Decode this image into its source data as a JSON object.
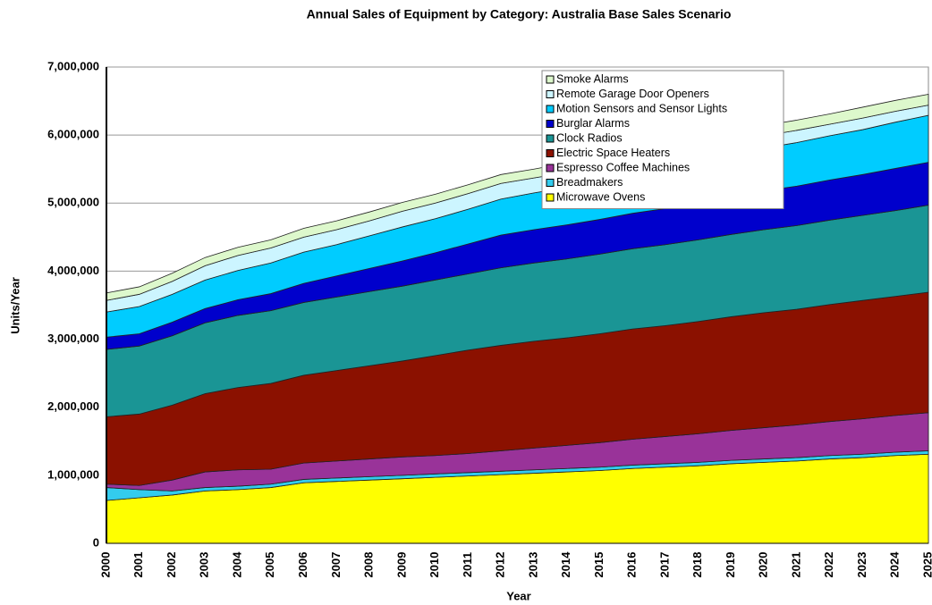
{
  "chart_data": {
    "type": "stacked_area",
    "title": "Annual Sales of Equipment by Category: Australia Base Sales Scenario",
    "x_label": "Year",
    "y_label": "Units/Year",
    "categories": [
      "2000",
      "2001",
      "2002",
      "2003",
      "2004",
      "2005",
      "2006",
      "2007",
      "2008",
      "2009",
      "2010",
      "2011",
      "2012",
      "2013",
      "2014",
      "2015",
      "2016",
      "2017",
      "2018",
      "2019",
      "2020",
      "2021",
      "2022",
      "2023",
      "2024",
      "2025"
    ],
    "ylim": [
      0,
      7000000
    ],
    "yticks": [
      0,
      {
        "value": 1000000,
        "label": "1,000,000"
      },
      {
        "value": 2000000,
        "label": "2,000,000"
      },
      {
        "value": 3000000,
        "label": "3,000,000"
      },
      {
        "value": 4000000,
        "label": "4,000,000"
      },
      {
        "value": 5000000,
        "label": "5,000,000"
      },
      {
        "value": 6000000,
        "label": "6,000,000"
      },
      {
        "value": 7000000,
        "label": "7,000,000"
      }
    ],
    "grid": true,
    "legend": "top-right",
    "series": [
      {
        "name": "Microwave Ovens",
        "color": "#ffff00",
        "values": [
          630000,
          670000,
          710000,
          770000,
          790000,
          820000,
          890000,
          910000,
          930000,
          950000,
          970000,
          990000,
          1010000,
          1030000,
          1050000,
          1070000,
          1100000,
          1120000,
          1140000,
          1170000,
          1190000,
          1210000,
          1240000,
          1260000,
          1290000,
          1310000
        ]
      },
      {
        "name": "Breadmakers",
        "color": "#33ccee",
        "values": [
          190000,
          120000,
          60000,
          50000,
          50000,
          50000,
          50000,
          50000,
          50000,
          50000,
          50000,
          50000,
          50000,
          50000,
          50000,
          50000,
          50000,
          50000,
          50000,
          50000,
          50000,
          50000,
          50000,
          50000,
          50000,
          50000
        ]
      },
      {
        "name": "Espresso Coffee Machines",
        "color": "#993399",
        "values": [
          50000,
          60000,
          160000,
          230000,
          240000,
          220000,
          240000,
          250000,
          260000,
          270000,
          270000,
          280000,
          300000,
          320000,
          340000,
          360000,
          380000,
          400000,
          420000,
          440000,
          460000,
          480000,
          500000,
          520000,
          540000,
          560000
        ]
      },
      {
        "name": "Electric Space Heaters",
        "color": "#8b1100",
        "values": [
          990000,
          1050000,
          1100000,
          1150000,
          1210000,
          1260000,
          1290000,
          1330000,
          1370000,
          1410000,
          1470000,
          1520000,
          1550000,
          1570000,
          1580000,
          1600000,
          1620000,
          1630000,
          1650000,
          1670000,
          1690000,
          1700000,
          1720000,
          1740000,
          1750000,
          1770000
        ]
      },
      {
        "name": "Clock Radios",
        "color": "#1a9595",
        "values": [
          990000,
          1000000,
          1020000,
          1040000,
          1060000,
          1070000,
          1070000,
          1080000,
          1090000,
          1100000,
          1110000,
          1120000,
          1140000,
          1150000,
          1160000,
          1170000,
          1180000,
          1190000,
          1200000,
          1210000,
          1220000,
          1230000,
          1240000,
          1250000,
          1260000,
          1280000
        ]
      },
      {
        "name": "Burglar Alarms",
        "color": "#0000cc",
        "values": [
          180000,
          180000,
          200000,
          210000,
          230000,
          250000,
          280000,
          310000,
          340000,
          370000,
          400000,
          440000,
          480000,
          490000,
          500000,
          510000,
          520000,
          530000,
          550000,
          560000,
          570000,
          580000,
          590000,
          600000,
          620000,
          630000
        ]
      },
      {
        "name": "Motion Sensors and Sensor Lights",
        "color": "#00ccff",
        "values": [
          370000,
          400000,
          410000,
          420000,
          430000,
          450000,
          460000,
          460000,
          480000,
          500000,
          500000,
          510000,
          530000,
          540000,
          550000,
          570000,
          580000,
          590000,
          600000,
          620000,
          630000,
          640000,
          650000,
          660000,
          680000,
          690000
        ]
      },
      {
        "name": "Remote Garage Door Openers",
        "color": "#ccf5ff",
        "values": [
          170000,
          180000,
          190000,
          210000,
          220000,
          220000,
          220000,
          220000,
          220000,
          230000,
          230000,
          230000,
          230000,
          220000,
          220000,
          210000,
          210000,
          200000,
          200000,
          190000,
          180000,
          180000,
          170000,
          170000,
          160000,
          150000
        ]
      },
      {
        "name": "Smoke Alarms",
        "color": "#ddf8cc",
        "values": [
          110000,
          110000,
          120000,
          120000,
          120000,
          120000,
          130000,
          130000,
          130000,
          130000,
          130000,
          130000,
          130000,
          130000,
          140000,
          140000,
          140000,
          140000,
          150000,
          150000,
          150000,
          150000,
          150000,
          160000,
          160000,
          160000
        ]
      }
    ]
  }
}
